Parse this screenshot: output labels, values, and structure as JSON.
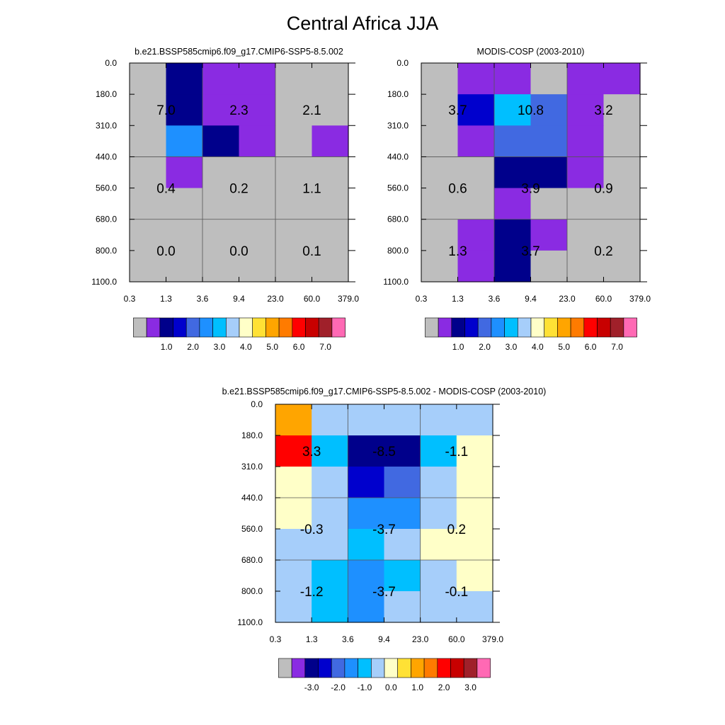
{
  "title": "Central Africa JJA",
  "chart_data": [
    {
      "type": "heatmap",
      "title": "b.e21.BSSP585cmip6.f09_g17.CMIP6-SSP5-8.5.002",
      "x_ticks": [
        "0.3",
        "1.3",
        "3.6",
        "9.4",
        "23.0",
        "60.0",
        "379.0"
      ],
      "y_ticks": [
        "0.0",
        "180.0",
        "310.0",
        "440.0",
        "560.0",
        "680.0",
        "800.0",
        "1100.0"
      ],
      "xlabel": "",
      "ylabel": "",
      "grid": true,
      "color_levels": [
        "#BEBEBE",
        "#8A2BE2",
        "#00008B",
        "#0000CD",
        "#4169E1",
        "#1E90FF",
        "#00BFFF",
        "#A6CEFA",
        "#FFFFC8",
        "#FFE135",
        "#FFA500",
        "#FF7B00",
        "#FF0000",
        "#C80000",
        "#A0202A",
        "#FF69B4"
      ],
      "cells": [
        [
          0,
          2,
          1,
          1,
          0,
          0
        ],
        [
          0,
          2,
          1,
          1,
          0,
          0
        ],
        [
          0,
          5,
          2,
          1,
          0,
          1
        ],
        [
          0,
          1,
          0,
          0,
          0,
          0
        ],
        [
          0,
          0,
          0,
          0,
          0,
          0
        ],
        [
          0,
          0,
          0,
          0,
          0,
          0
        ],
        [
          0,
          0,
          0,
          0,
          0,
          0
        ]
      ],
      "box_values": [
        [
          "7.0",
          "2.3",
          "2.1"
        ],
        [
          "0.4",
          "0.2",
          "1.1"
        ],
        [
          "0.0",
          "0.0",
          "0.1"
        ]
      ],
      "colorbar": {
        "tick_labels": [
          "1.0",
          "2.0",
          "3.0",
          "4.0",
          "5.0",
          "6.0",
          "7.0"
        ]
      }
    },
    {
      "type": "heatmap",
      "title": "MODIS-COSP (2003-2010)",
      "x_ticks": [
        "0.3",
        "1.3",
        "3.6",
        "9.4",
        "23.0",
        "60.0",
        "379.0"
      ],
      "y_ticks": [
        "0.0",
        "180.0",
        "310.0",
        "440.0",
        "560.0",
        "680.0",
        "800.0",
        "1100.0"
      ],
      "xlabel": "",
      "ylabel": "",
      "grid": true,
      "color_levels": [
        "#BEBEBE",
        "#8A2BE2",
        "#00008B",
        "#0000CD",
        "#4169E1",
        "#1E90FF",
        "#00BFFF",
        "#A6CEFA",
        "#FFFFC8",
        "#FFE135",
        "#FFA500",
        "#FF7B00",
        "#FF0000",
        "#C80000",
        "#A0202A",
        "#FF69B4"
      ],
      "cells": [
        [
          0,
          1,
          1,
          0,
          1,
          1
        ],
        [
          0,
          3,
          6,
          4,
          1,
          0
        ],
        [
          0,
          1,
          4,
          4,
          1,
          0
        ],
        [
          0,
          0,
          2,
          2,
          1,
          0
        ],
        [
          0,
          0,
          1,
          0,
          0,
          0
        ],
        [
          0,
          1,
          2,
          1,
          0,
          0
        ],
        [
          0,
          1,
          2,
          0,
          0,
          0
        ]
      ],
      "box_values": [
        [
          "3.7",
          "10.8",
          "3.2"
        ],
        [
          "0.6",
          "3.9",
          "0.9"
        ],
        [
          "1.3",
          "3.7",
          "0.2"
        ]
      ],
      "colorbar": {
        "tick_labels": [
          "1.0",
          "2.0",
          "3.0",
          "4.0",
          "5.0",
          "6.0",
          "7.0"
        ]
      }
    },
    {
      "type": "heatmap",
      "title": "b.e21.BSSP585cmip6.f09_g17.CMIP6-SSP5-8.5.002 - MODIS-COSP (2003-2010)",
      "x_ticks": [
        "0.3",
        "1.3",
        "3.6",
        "9.4",
        "23.0",
        "60.0",
        "379.0"
      ],
      "y_ticks": [
        "0.0",
        "180.0",
        "310.0",
        "440.0",
        "560.0",
        "680.0",
        "800.0",
        "1100.0"
      ],
      "xlabel": "",
      "ylabel": "",
      "grid": true,
      "color_levels": [
        "#BEBEBE",
        "#8A2BE2",
        "#00008B",
        "#0000CD",
        "#4169E1",
        "#1E90FF",
        "#00BFFF",
        "#A6CEFA",
        "#FFFFC8",
        "#FFE135",
        "#FFA500",
        "#FF7B00",
        "#FF0000",
        "#C80000",
        "#A0202A",
        "#FF69B4"
      ],
      "cells": [
        [
          10,
          7,
          7,
          7,
          7,
          7
        ],
        [
          12,
          6,
          2,
          2,
          6,
          8
        ],
        [
          8,
          7,
          3,
          4,
          7,
          8
        ],
        [
          8,
          7,
          5,
          5,
          7,
          8
        ],
        [
          7,
          7,
          6,
          7,
          8,
          8
        ],
        [
          7,
          6,
          5,
          6,
          7,
          8
        ],
        [
          7,
          6,
          5,
          7,
          7,
          7
        ]
      ],
      "box_values": [
        [
          "3.3",
          "-8.5",
          "-1.1"
        ],
        [
          "-0.3",
          "-3.7",
          "0.2"
        ],
        [
          "-1.2",
          "-3.7",
          "-0.1"
        ]
      ],
      "colorbar": {
        "tick_labels": [
          "-3.0",
          "-2.0",
          "-1.0",
          "0.0",
          "1.0",
          "2.0",
          "3.0"
        ]
      }
    }
  ]
}
